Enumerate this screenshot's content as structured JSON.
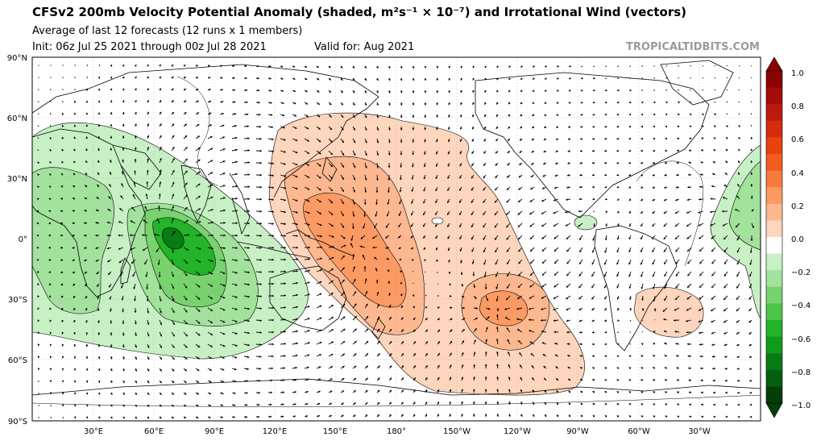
{
  "header": {
    "title": "CFSv2 200mb Velocity Potential Anomaly (shaded, m²s⁻¹ × 10⁻⁷) and Irrotational Wind (vectors)",
    "subtitle": "Average of last 12 forecasts (12 runs x 1 members)",
    "init": "Init: 06z Jul 25 2021 through 00z Jul 28 2021",
    "valid": "Valid for: Aug 2021",
    "brand": "TROPICALTIDBITS.COM"
  },
  "map": {
    "lat_ticks": [
      "90°N",
      "60°N",
      "30°N",
      "0°",
      "30°S",
      "60°S",
      "90°S"
    ],
    "lon_ticks": [
      "30°E",
      "60°E",
      "90°E",
      "120°E",
      "150°E",
      "180°",
      "150°W",
      "120°W",
      "90°W",
      "60°W",
      "30°W"
    ],
    "lon_values": [
      30,
      60,
      90,
      120,
      150,
      180,
      210,
      240,
      270,
      300,
      330
    ],
    "lat_values": [
      90,
      60,
      30,
      0,
      -30,
      -60,
      -90
    ]
  },
  "colorbar": {
    "ticks": [
      "1.0",
      "0.8",
      "0.6",
      "0.4",
      "0.2",
      "0.0",
      "−0.2",
      "−0.4",
      "−0.6",
      "−0.8",
      "−1.0"
    ],
    "levels": [
      1.0,
      0.9,
      0.8,
      0.7,
      0.6,
      0.5,
      0.4,
      0.3,
      0.2,
      0.1,
      -0.1,
      -0.2,
      -0.3,
      -0.4,
      -0.5,
      -0.6,
      -0.7,
      -0.8,
      -0.9,
      -1.0
    ],
    "colors": [
      "#8b0000",
      "#a40c0c",
      "#bd1a0f",
      "#d42c0e",
      "#e8430c",
      "#f25c20",
      "#f77b3d",
      "#fb9a62",
      "#fdb890",
      "#fed6bd",
      "#ffffff",
      "#c8f0c5",
      "#a2e29c",
      "#78d36e",
      "#4dc548",
      "#24b429",
      "#129a1c",
      "#087c14",
      "#04600e",
      "#023f07"
    ]
  },
  "anomalies": [
    {
      "name": "negative-indian-ocean",
      "sign": "negative"
    },
    {
      "name": "positive-west-pacific",
      "sign": "positive"
    },
    {
      "name": "positive-south-pacific",
      "sign": "positive"
    },
    {
      "name": "positive-south-atlantic",
      "sign": "positive"
    },
    {
      "name": "negative-central-america",
      "sign": "negative"
    },
    {
      "name": "negative-atlantic-africa",
      "sign": "negative"
    }
  ]
}
